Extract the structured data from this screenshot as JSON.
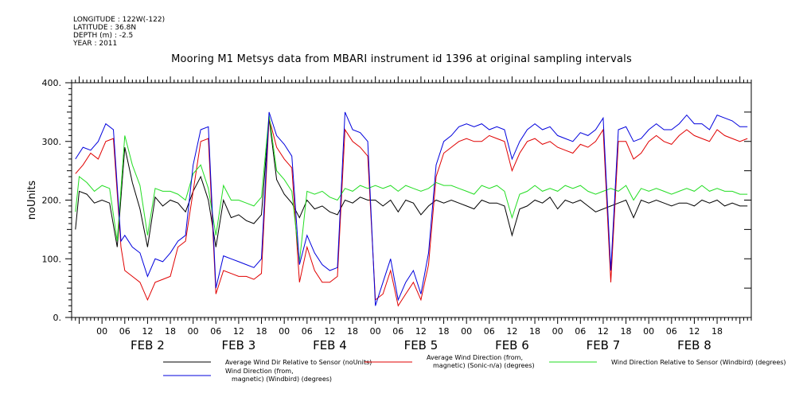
{
  "header": {
    "meta_lines": [
      "LONGITUDE : 122W(-122)",
      "LATITUDE : 36.8N",
      "DEPTH (m) : -2.5",
      "YEAR : 2011"
    ],
    "title": "Mooring M1 Metsys data from MBARI instrument id 1396 at original sampling intervals"
  },
  "chart_data": {
    "type": "line",
    "title": "Mooring M1 Metsys data from MBARI instrument id 1396 at original sampling intervals",
    "ylabel": "noUnits",
    "xlabel": "",
    "ylim": [
      0,
      400
    ],
    "yticks": [
      0,
      100,
      200,
      300,
      400
    ],
    "xlim_hours": [
      -8,
      171
    ],
    "hour_tick_labels": [
      "00",
      "06",
      "12",
      "18",
      "00",
      "06",
      "12",
      "18",
      "00",
      "06",
      "12",
      "18",
      "00",
      "06",
      "12",
      "18",
      "00",
      "06",
      "12",
      "18",
      "00",
      "06",
      "12",
      "18",
      "00",
      "06",
      "12",
      "18"
    ],
    "day_labels": [
      "FEB  2",
      "FEB  3",
      "FEB  4",
      "FEB  5",
      "FEB  6",
      "FEB  7",
      "FEB  8"
    ],
    "grid": false,
    "legend_position": "bottom",
    "colors": {
      "black": "#000000",
      "red": "#e00000",
      "green": "#22dd22",
      "blue": "#0000dd"
    },
    "series": [
      {
        "name": "Average Wind Dir Relative to Sensor (noUnits)",
        "color": "#000000",
        "hours": [
          -7,
          -6,
          -4,
          -2,
          0,
          2,
          4,
          6,
          8,
          10,
          12,
          14,
          16,
          18,
          20,
          22,
          24,
          26,
          28,
          30,
          32,
          34,
          36,
          38,
          40,
          42,
          44,
          46,
          48,
          50,
          52,
          54,
          56,
          58,
          60,
          62,
          64,
          66,
          68,
          70,
          72,
          74,
          76,
          78,
          80,
          82,
          84,
          86,
          88,
          90,
          92,
          94,
          96,
          98,
          100,
          102,
          104,
          106,
          108,
          110,
          112,
          114,
          116,
          118,
          120,
          122,
          124,
          126,
          128,
          130,
          132,
          134,
          136,
          138,
          140,
          142,
          144,
          146,
          148,
          150,
          152,
          154,
          156,
          158,
          160,
          162,
          164,
          166,
          168,
          170
        ],
        "values": [
          150,
          215,
          210,
          195,
          200,
          195,
          120,
          290,
          230,
          185,
          120,
          205,
          190,
          200,
          195,
          180,
          215,
          240,
          200,
          120,
          200,
          170,
          175,
          165,
          160,
          175,
          340,
          235,
          210,
          195,
          170,
          200,
          185,
          190,
          180,
          175,
          200,
          195,
          205,
          200,
          200,
          190,
          200,
          180,
          200,
          195,
          175,
          190,
          200,
          195,
          200,
          195,
          190,
          185,
          200,
          195,
          195,
          190,
          140,
          185,
          190,
          200,
          195,
          205,
          185,
          200,
          195,
          200,
          190,
          180,
          185,
          190,
          195,
          200,
          170,
          200,
          195,
          200,
          195,
          190,
          195,
          195,
          190,
          200,
          195,
          200,
          190,
          195,
          190,
          190
        ]
      },
      {
        "name": "Average Wind Direction (from, magnetic) (Sonic-n/a) (degrees)",
        "color": "#e00000",
        "hours": [
          -7,
          -5,
          -3,
          -1,
          1,
          3,
          5,
          6,
          8,
          10,
          12,
          14,
          16,
          18,
          20,
          22,
          24,
          26,
          28,
          30,
          32,
          34,
          36,
          38,
          40,
          42,
          44,
          46,
          48,
          50,
          52,
          54,
          56,
          58,
          60,
          62,
          64,
          66,
          68,
          70,
          72,
          74,
          76,
          78,
          80,
          82,
          84,
          86,
          88,
          90,
          92,
          94,
          96,
          98,
          100,
          102,
          104,
          106,
          108,
          110,
          112,
          114,
          116,
          118,
          120,
          122,
          124,
          126,
          128,
          130,
          132,
          134,
          136,
          138,
          140,
          142,
          144,
          146,
          148,
          150,
          152,
          154,
          156,
          158,
          160,
          162,
          164,
          166,
          168,
          170
        ],
        "values": [
          245,
          260,
          280,
          270,
          300,
          305,
          120,
          80,
          70,
          60,
          30,
          60,
          65,
          70,
          120,
          130,
          215,
          300,
          305,
          40,
          80,
          75,
          70,
          70,
          65,
          75,
          340,
          290,
          270,
          255,
          60,
          120,
          80,
          60,
          60,
          70,
          320,
          300,
          290,
          275,
          30,
          40,
          80,
          20,
          40,
          60,
          30,
          90,
          240,
          280,
          290,
          300,
          305,
          300,
          300,
          310,
          305,
          300,
          250,
          280,
          300,
          305,
          295,
          300,
          290,
          285,
          280,
          295,
          290,
          300,
          320,
          60,
          300,
          300,
          270,
          280,
          300,
          310,
          300,
          295,
          310,
          320,
          310,
          305,
          300,
          320,
          310,
          305,
          300,
          305
        ]
      },
      {
        "name": "Wind Direction Relative to Sensor (Windbird) (degrees)",
        "color": "#22dd22",
        "hours": [
          -7,
          -6,
          -4,
          -2,
          0,
          2,
          4,
          6,
          8,
          10,
          12,
          14,
          16,
          18,
          20,
          22,
          24,
          26,
          28,
          30,
          32,
          34,
          36,
          38,
          40,
          42,
          44,
          46,
          48,
          50,
          52,
          54,
          56,
          58,
          60,
          62,
          64,
          66,
          68,
          70,
          72,
          74,
          76,
          78,
          80,
          82,
          84,
          86,
          88,
          90,
          92,
          94,
          96,
          98,
          100,
          102,
          104,
          106,
          108,
          110,
          112,
          114,
          116,
          118,
          120,
          122,
          124,
          126,
          128,
          130,
          132,
          134,
          136,
          138,
          140,
          142,
          144,
          146,
          148,
          150,
          152,
          154,
          156,
          158,
          160,
          162,
          164,
          166,
          168,
          170
        ],
        "values": [
          180,
          240,
          230,
          215,
          225,
          220,
          130,
          310,
          260,
          225,
          140,
          220,
          215,
          215,
          210,
          200,
          245,
          260,
          220,
          140,
          225,
          200,
          200,
          195,
          190,
          205,
          345,
          250,
          235,
          215,
          95,
          215,
          210,
          215,
          205,
          200,
          220,
          215,
          225,
          220,
          225,
          220,
          225,
          215,
          225,
          220,
          215,
          220,
          230,
          225,
          225,
          220,
          215,
          210,
          225,
          220,
          225,
          215,
          170,
          210,
          215,
          225,
          215,
          220,
          215,
          225,
          220,
          225,
          215,
          210,
          215,
          220,
          215,
          225,
          200,
          220,
          215,
          220,
          215,
          210,
          215,
          220,
          215,
          225,
          215,
          220,
          215,
          215,
          210,
          210
        ]
      },
      {
        "name": "Wind Direction (from, magnetic) (Windbird) (degrees)",
        "color": "#0000dd",
        "hours": [
          -7,
          -5,
          -3,
          -1,
          1,
          3,
          5,
          6,
          8,
          10,
          12,
          14,
          16,
          18,
          20,
          22,
          24,
          26,
          28,
          30,
          32,
          34,
          36,
          38,
          40,
          42,
          44,
          46,
          48,
          50,
          52,
          54,
          56,
          58,
          60,
          62,
          64,
          66,
          68,
          70,
          72,
          74,
          76,
          78,
          80,
          82,
          84,
          86,
          88,
          90,
          92,
          94,
          96,
          98,
          100,
          102,
          104,
          106,
          108,
          110,
          112,
          114,
          116,
          118,
          120,
          122,
          124,
          126,
          128,
          130,
          132,
          134,
          136,
          138,
          140,
          142,
          144,
          146,
          148,
          150,
          152,
          154,
          156,
          158,
          160,
          162,
          164,
          166,
          168,
          170
        ],
        "values": [
          270,
          290,
          285,
          300,
          330,
          320,
          130,
          140,
          120,
          110,
          70,
          100,
          95,
          110,
          130,
          140,
          260,
          320,
          325,
          50,
          105,
          100,
          95,
          90,
          85,
          100,
          350,
          310,
          295,
          275,
          90,
          140,
          110,
          90,
          80,
          85,
          350,
          320,
          315,
          300,
          20,
          60,
          100,
          30,
          60,
          80,
          40,
          110,
          260,
          300,
          310,
          325,
          330,
          325,
          330,
          320,
          325,
          320,
          270,
          300,
          320,
          330,
          320,
          325,
          310,
          305,
          300,
          315,
          310,
          320,
          340,
          80,
          320,
          325,
          300,
          305,
          320,
          330,
          320,
          320,
          330,
          345,
          330,
          330,
          320,
          345,
          340,
          335,
          325,
          325
        ]
      }
    ]
  },
  "legend": {
    "items": [
      "Average Wind Dir Relative to Sensor (noUnits)",
      "Average Wind Direction (from,\nmagnetic) (Sonic-n/a) (degrees)",
      "Wind Direction Relative to Sensor (Windbird) (degrees)",
      "Wind Direction (from,\nmagnetic) (Windbird) (degrees)"
    ]
  }
}
